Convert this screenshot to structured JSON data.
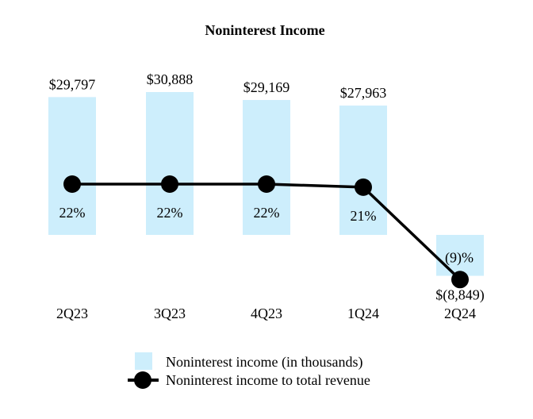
{
  "chart_data": {
    "type": "bar",
    "title": "Noninterest Income",
    "categories": [
      "2Q23",
      "3Q23",
      "4Q23",
      "1Q24",
      "2Q24"
    ],
    "series": [
      {
        "name": "Noninterest income (in thousands)",
        "kind": "bar",
        "values": [
          29797,
          30888,
          29169,
          27963,
          -8849
        ],
        "labels": [
          "$29,797",
          "$30,888",
          "$29,169",
          "$27,963",
          "$(8,849)"
        ]
      },
      {
        "name": "Noninterest income to total revenue",
        "kind": "line",
        "values": [
          22,
          22,
          22,
          21,
          -9
        ],
        "labels": [
          "22%",
          "22%",
          "22%",
          "21%",
          "(9)%"
        ]
      }
    ],
    "xlabel": "",
    "ylabel": "",
    "colors": {
      "bar": "#cdeefc",
      "line": "#000000"
    }
  }
}
